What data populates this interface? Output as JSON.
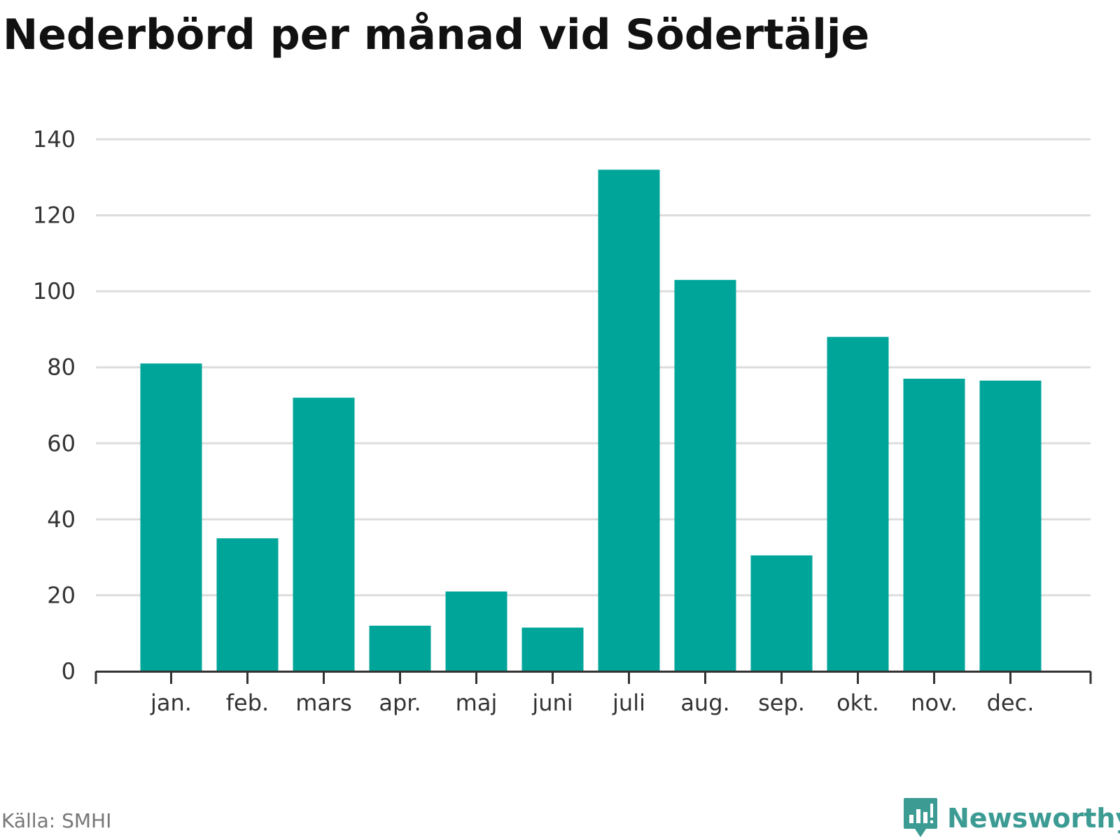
{
  "chart_data": {
    "type": "bar",
    "title": "Nederbörd per månad vid Södertälje",
    "xlabel": "",
    "ylabel": "",
    "categories": [
      "jan.",
      "feb.",
      "mars",
      "apr.",
      "maj",
      "juni",
      "juli",
      "aug.",
      "sep.",
      "okt.",
      "nov.",
      "dec."
    ],
    "values": [
      81,
      35,
      72,
      12,
      21,
      11.5,
      132,
      103,
      30.5,
      88,
      77,
      76.5
    ],
    "ylim": [
      0,
      140
    ],
    "yticks": [
      "0",
      "20",
      "40",
      "60",
      "80",
      "100",
      "120",
      "140"
    ],
    "grid": true,
    "bar_color": "#00a59a",
    "grid_color": "#dddddd",
    "axis_color": "#333333"
  },
  "footer": {
    "source": "Källa: SMHI",
    "brand": "Newsworthy",
    "brand_color": "#3c9b93",
    "brand_icon": "bar-chart-speech-bubble-icon"
  }
}
